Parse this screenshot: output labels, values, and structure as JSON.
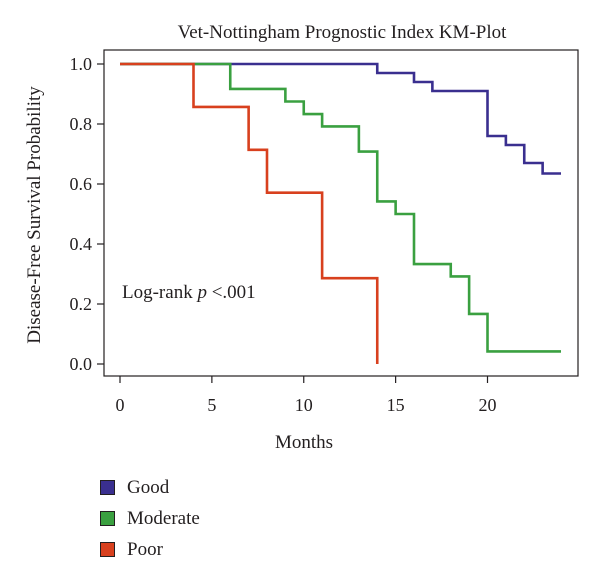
{
  "chart_data": {
    "type": "line",
    "step": true,
    "title": "Vet-Nottingham Prognostic Index KM-Plot",
    "xlabel": "Months",
    "ylabel": "Disease-Free Survival Probability",
    "xlim": [
      0,
      24
    ],
    "ylim": [
      0,
      1
    ],
    "xticks": [
      "0",
      "5",
      "10",
      "15",
      "20"
    ],
    "xtick_values": [
      0,
      5,
      10,
      15,
      20
    ],
    "yticks": [
      "0.0",
      "0.2",
      "0.4",
      "0.6",
      "0.8",
      "1.0"
    ],
    "ytick_values": [
      0,
      0.2,
      0.4,
      0.6,
      0.8,
      1.0
    ],
    "grid": false,
    "legend_position": "bottom-left",
    "annotation": {
      "prefix": "Log-rank ",
      "italic": "p",
      "suffix": " <.001",
      "x": 0,
      "y": 0.22
    },
    "series": [
      {
        "name": "Good",
        "color": "#3a2f8f",
        "x": [
          0,
          14,
          16,
          17,
          20,
          21,
          22,
          23,
          24
        ],
        "y": [
          1.0,
          0.97,
          0.94,
          0.91,
          0.76,
          0.73,
          0.67,
          0.635,
          0.635
        ]
      },
      {
        "name": "Moderate",
        "color": "#3aa040",
        "x": [
          0,
          6,
          9,
          10,
          11,
          13,
          14,
          15,
          16,
          18,
          19,
          20,
          24
        ],
        "y": [
          1.0,
          0.917,
          0.875,
          0.833,
          0.792,
          0.708,
          0.542,
          0.5,
          0.333,
          0.292,
          0.167,
          0.042,
          0.042
        ]
      },
      {
        "name": "Poor",
        "color": "#d8401e",
        "x": [
          0,
          4,
          7,
          8,
          11,
          14
        ],
        "y": [
          1.0,
          0.857,
          0.714,
          0.571,
          0.286,
          0.0
        ]
      }
    ]
  }
}
